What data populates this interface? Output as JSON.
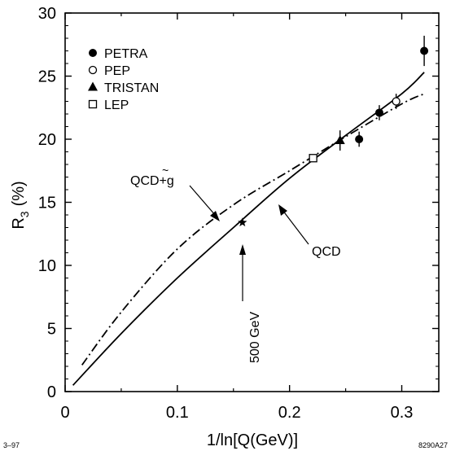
{
  "chart_data": {
    "type": "scatter",
    "xlabel": "1/ln[Q(GeV)]",
    "ylabel_main": "R",
    "ylabel_sub": "3",
    "ylabel_unit": "(%)",
    "xlim": [
      0,
      0.333
    ],
    "ylim": [
      0,
      30
    ],
    "x_ticks": [
      "0",
      "0.1",
      "0.2",
      "0.3"
    ],
    "x_tick_values": [
      0,
      0.1,
      0.2,
      0.3
    ],
    "y_ticks": [
      "0",
      "5",
      "10",
      "15",
      "20",
      "25",
      "30"
    ],
    "y_tick_values": [
      0,
      5,
      10,
      15,
      20,
      25,
      30
    ],
    "legend_position": "top-left",
    "series": [
      {
        "name": "PETRA",
        "marker": "filled-circle",
        "points": [
          {
            "x": 0.262,
            "y": 20.0,
            "err": 0.6
          },
          {
            "x": 0.28,
            "y": 22.1,
            "err": 0.6
          },
          {
            "x": 0.32,
            "y": 27.0,
            "err": 1.2
          }
        ]
      },
      {
        "name": "PEP",
        "marker": "open-circle",
        "points": [
          {
            "x": 0.295,
            "y": 23.0,
            "err": 0.6
          }
        ]
      },
      {
        "name": "TRISTAN",
        "marker": "filled-triangle",
        "points": [
          {
            "x": 0.245,
            "y": 19.9,
            "err": 0.8
          }
        ]
      },
      {
        "name": "LEP",
        "marker": "open-square",
        "points": [
          {
            "x": 0.221,
            "y": 18.5,
            "err": 0.3
          }
        ]
      }
    ],
    "curves": [
      {
        "name": "QCD",
        "style": "solid",
        "x": [
          0.007,
          0.05,
          0.1,
          0.15,
          0.2,
          0.25,
          0.3,
          0.32
        ],
        "y": [
          0.5,
          4.6,
          9.0,
          13.0,
          16.9,
          20.3,
          23.6,
          25.3
        ]
      },
      {
        "name": "QCD+g̃",
        "style": "dash-dot",
        "x": [
          0.015,
          0.05,
          0.1,
          0.15,
          0.2,
          0.25,
          0.3,
          0.32
        ],
        "y": [
          2.1,
          6.3,
          11.3,
          14.8,
          17.5,
          20.2,
          22.8,
          23.6
        ]
      }
    ],
    "star": {
      "x": 0.158,
      "y": 13.4
    }
  },
  "annotations": {
    "qcd": "QCD",
    "qcd_g_prefix": "QCD+",
    "qcd_g_letter": "g",
    "qcd_g_tilde": "~",
    "energy": "500 GeV"
  },
  "footer": {
    "left": "3–97",
    "right": "8290A27"
  }
}
